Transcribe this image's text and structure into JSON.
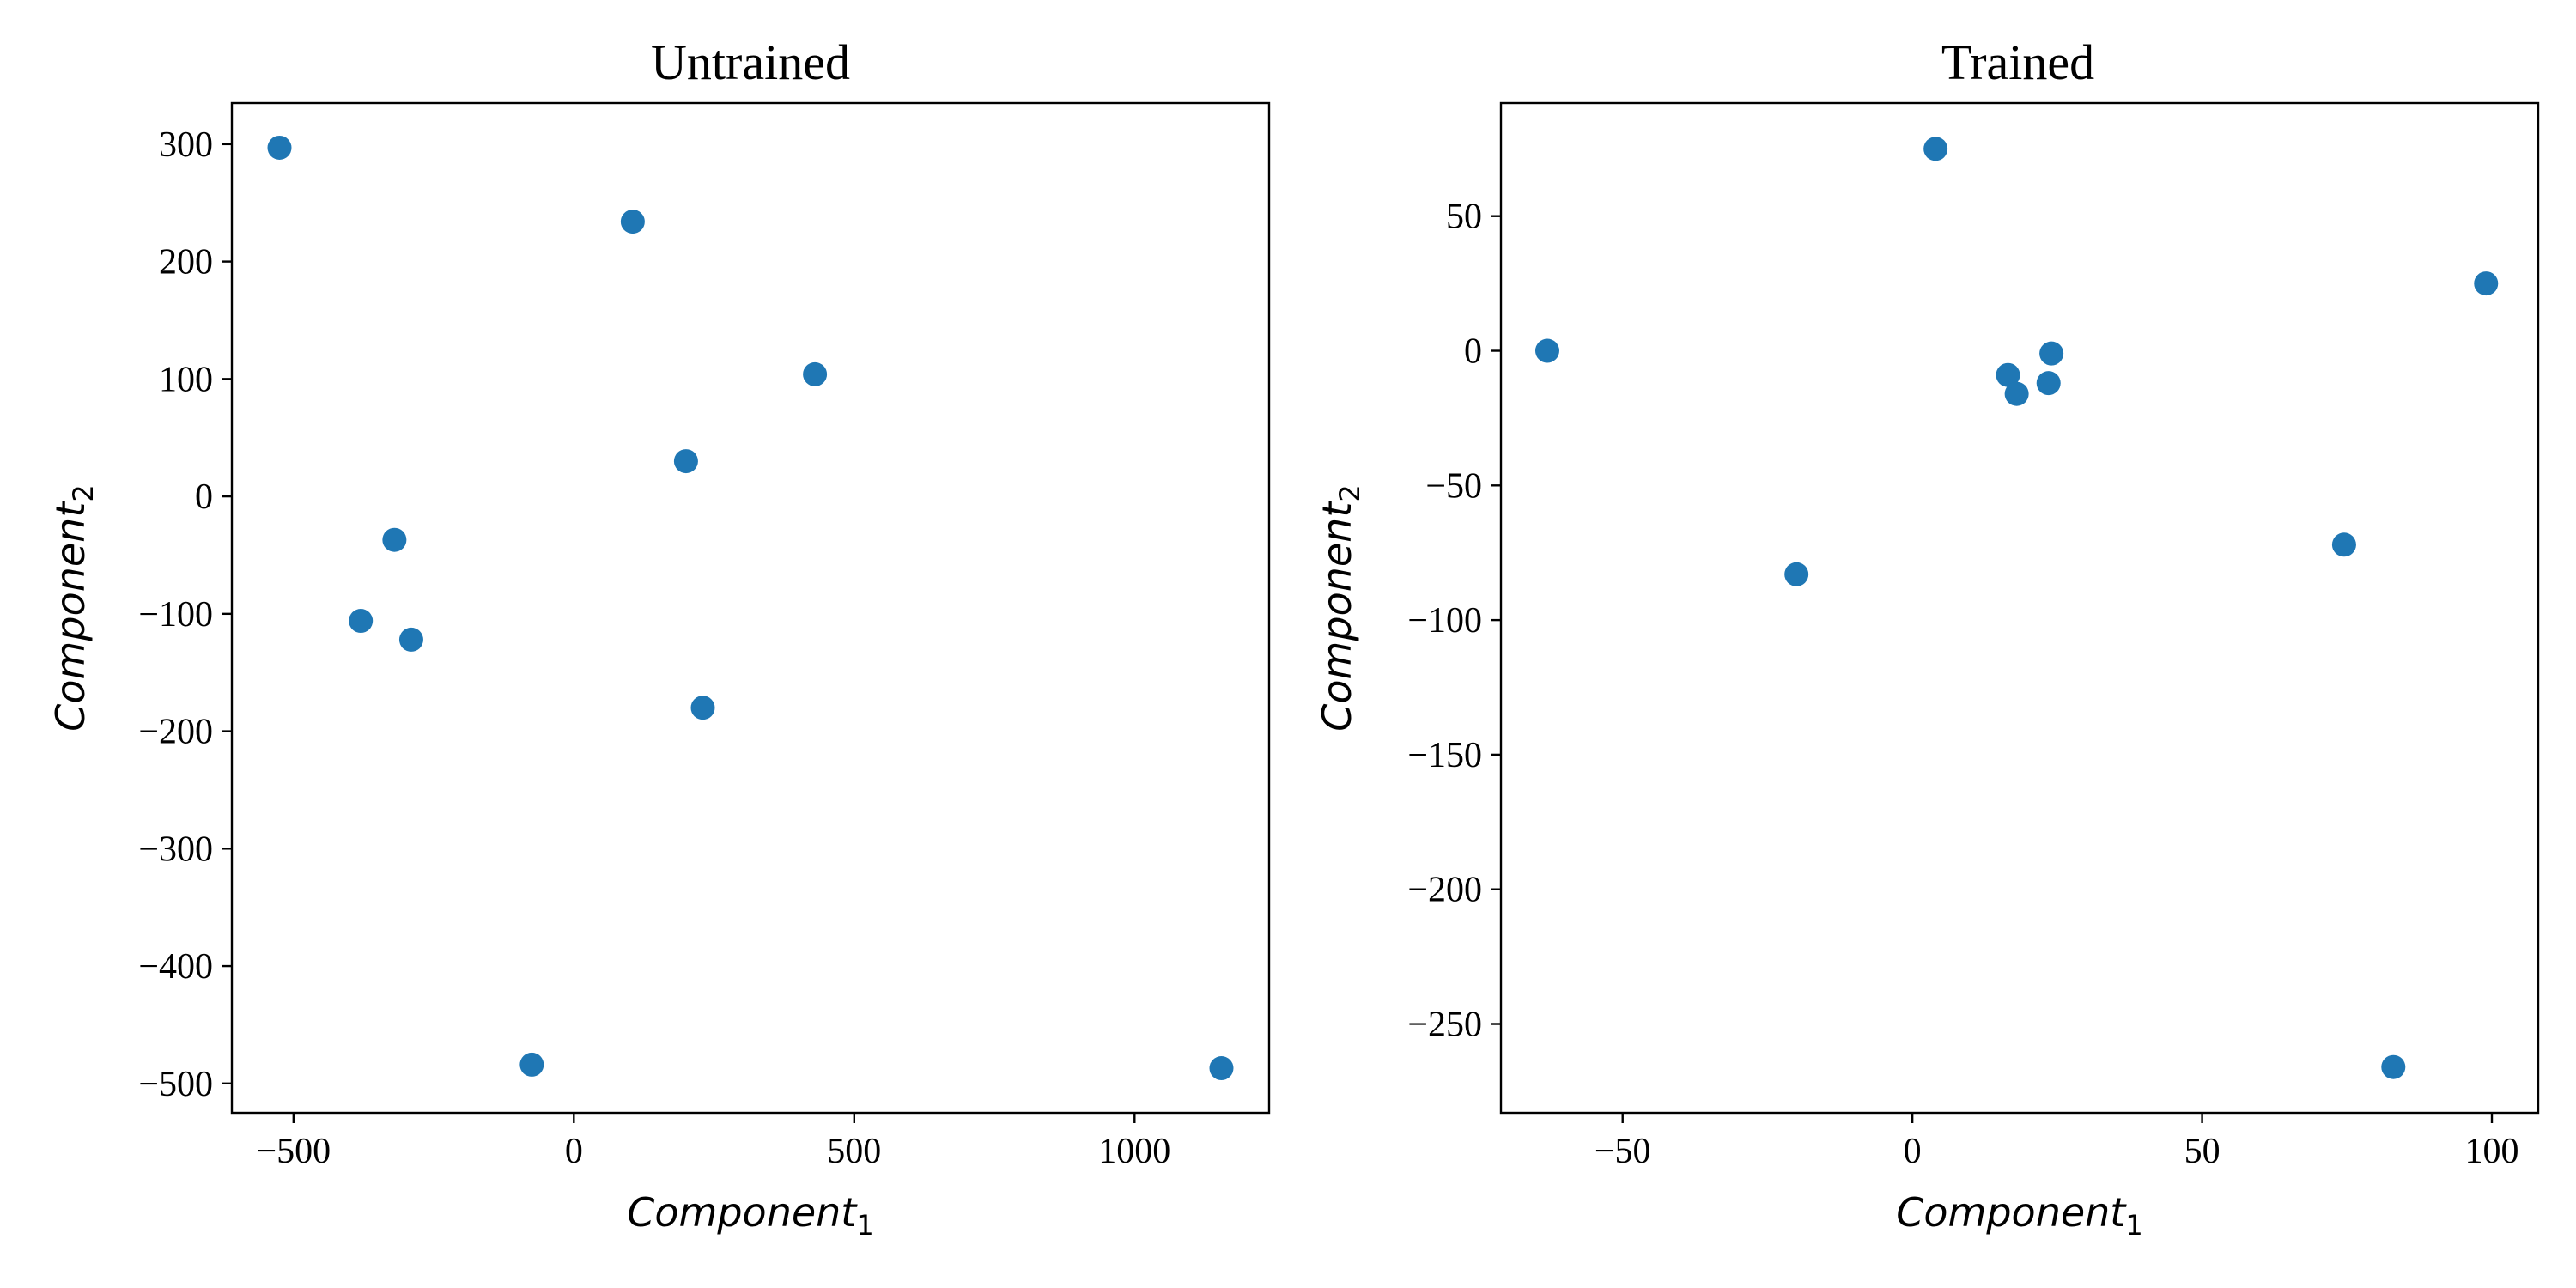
{
  "chart_data": [
    {
      "type": "scatter",
      "title": "Untrained",
      "xlabel": "Component",
      "xlabel_sub": "1",
      "ylabel": "Component",
      "ylabel_sub": "2",
      "xlim": [
        -610,
        1240
      ],
      "ylim": [
        -525,
        335
      ],
      "xticks": [
        -500,
        0,
        500,
        1000
      ],
      "yticks": [
        -500,
        -400,
        -300,
        -200,
        -100,
        0,
        100,
        200,
        300
      ],
      "color": "#1f77b4",
      "grid": false,
      "points": [
        {
          "x": -525,
          "y": 297
        },
        {
          "x": 105,
          "y": 234
        },
        {
          "x": 430,
          "y": 104
        },
        {
          "x": 200,
          "y": 30
        },
        {
          "x": -320,
          "y": -37
        },
        {
          "x": -380,
          "y": -106
        },
        {
          "x": -290,
          "y": -122
        },
        {
          "x": 230,
          "y": -180
        },
        {
          "x": -75,
          "y": -484
        },
        {
          "x": 1155,
          "y": -487
        }
      ]
    },
    {
      "type": "scatter",
      "title": "Trained",
      "xlabel": "Component",
      "xlabel_sub": "1",
      "ylabel": "Component",
      "ylabel_sub": "2",
      "xlim": [
        -71,
        108
      ],
      "ylim": [
        -283,
        92
      ],
      "xticks": [
        -50,
        0,
        50,
        100
      ],
      "yticks": [
        -250,
        -200,
        -150,
        -100,
        -50,
        0,
        50
      ],
      "color": "#1f77b4",
      "grid": false,
      "points": [
        {
          "x": 4,
          "y": 75
        },
        {
          "x": 99,
          "y": 25
        },
        {
          "x": -63,
          "y": 0
        },
        {
          "x": 24,
          "y": -1
        },
        {
          "x": 16.5,
          "y": -9
        },
        {
          "x": 18,
          "y": -16
        },
        {
          "x": 23.5,
          "y": -12
        },
        {
          "x": -20,
          "y": -83
        },
        {
          "x": 74.5,
          "y": -72
        },
        {
          "x": 83,
          "y": -266
        }
      ]
    }
  ]
}
